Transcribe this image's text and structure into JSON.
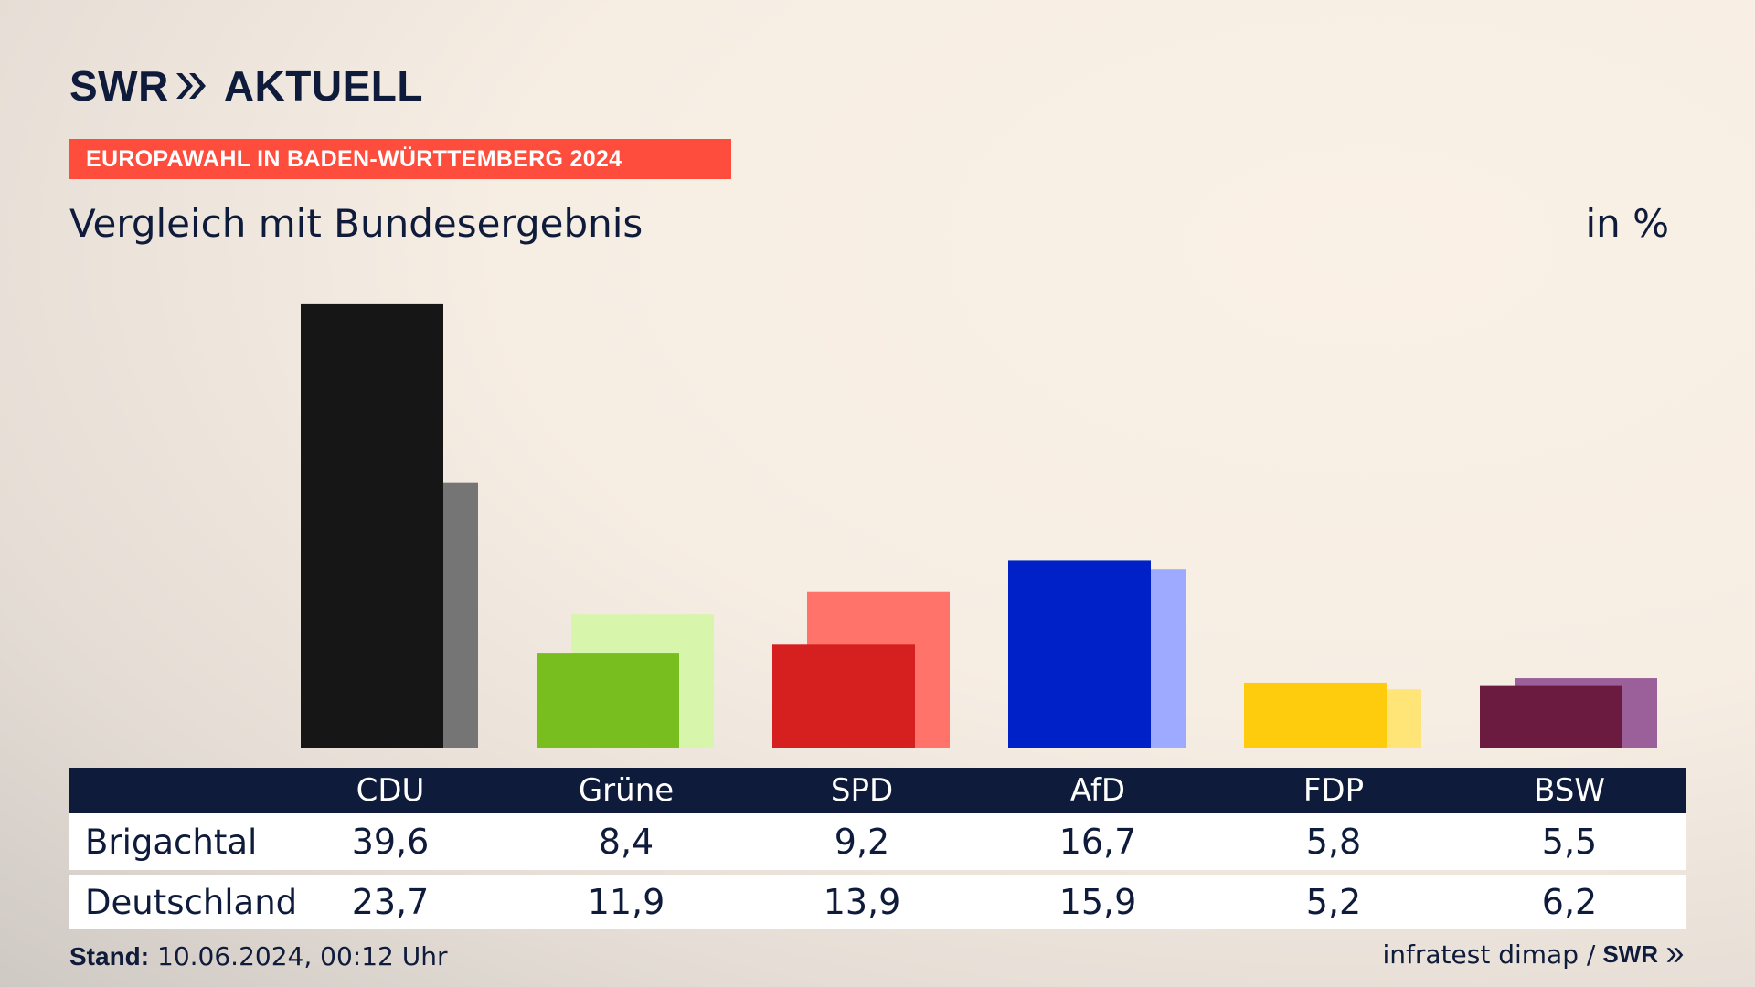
{
  "brand": {
    "name": "SWR",
    "sub": "AKTUELL",
    "logo_icon": "double-chevron-icon",
    "color": "#0e1b3b"
  },
  "kicker": {
    "text": "EUROPAWAHL IN BADEN-WÜRTTEMBERG 2024",
    "color": "#ff4d3d"
  },
  "subtitle": "Vergleich mit Bundesergebnis",
  "unit": "in %",
  "table": {
    "rows": [
      {
        "label": "Brigachtal",
        "values": [
          "39,6",
          "8,4",
          "9,2",
          "16,7",
          "5,8",
          "5,5"
        ]
      },
      {
        "label": "Deutschland",
        "values": [
          "23,7",
          "11,9",
          "13,9",
          "15,9",
          "5,2",
          "6,2"
        ]
      }
    ]
  },
  "footer": {
    "stand_label": "Stand:",
    "stand_value": "10.06.2024, 00:12 Uhr",
    "source": "infratest dimap /",
    "source_brand": "SWR"
  },
  "chart_data": {
    "type": "bar",
    "categories": [
      "CDU",
      "Grüne",
      "SPD",
      "AfD",
      "FDP",
      "BSW"
    ],
    "series": [
      {
        "name": "Brigachtal",
        "values": [
          39.6,
          8.4,
          9.2,
          16.7,
          5.8,
          5.5
        ],
        "colors": [
          "#161616",
          "#78be1e",
          "#d61f1f",
          "#0020c8",
          "#ffcc0d",
          "#6b1a40"
        ]
      },
      {
        "name": "Deutschland",
        "values": [
          23.7,
          11.9,
          13.9,
          15.9,
          5.2,
          6.2
        ],
        "colors": [
          "#757575",
          "#d7f5ab",
          "#ff736b",
          "#9daaff",
          "#ffe477",
          "#9b5f99"
        ]
      }
    ],
    "ylim": [
      0,
      40
    ],
    "grid": false,
    "legend": "none"
  }
}
